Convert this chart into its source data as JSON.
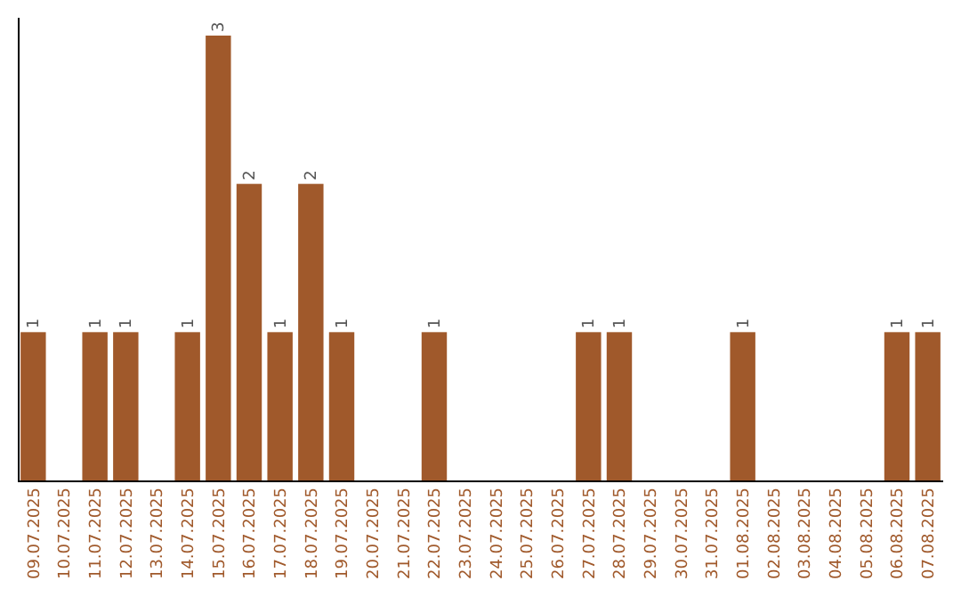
{
  "chart_data": {
    "type": "bar",
    "categories": [
      "09.07.2025",
      "10.07.2025",
      "11.07.2025",
      "12.07.2025",
      "13.07.2025",
      "14.07.2025",
      "15.07.2025",
      "16.07.2025",
      "17.07.2025",
      "18.07.2025",
      "19.07.2025",
      "20.07.2025",
      "21.07.2025",
      "22.07.2025",
      "23.07.2025",
      "24.07.2025",
      "25.07.2025",
      "26.07.2025",
      "27.07.2025",
      "28.07.2025",
      "29.07.2025",
      "30.07.2025",
      "31.07.2025",
      "01.08.2025",
      "02.08.2025",
      "03.08.2025",
      "04.08.2025",
      "05.08.2025",
      "06.08.2025",
      "07.08.2025"
    ],
    "values": [
      1,
      0,
      1,
      1,
      0,
      1,
      3,
      2,
      1,
      2,
      1,
      0,
      0,
      1,
      0,
      0,
      0,
      0,
      1,
      1,
      0,
      0,
      0,
      1,
      0,
      0,
      0,
      0,
      1,
      1
    ],
    "value_labels": [
      "1",
      null,
      "1",
      "1",
      null,
      "1",
      "3",
      "2",
      "1",
      "2",
      "1",
      null,
      null,
      "1",
      null,
      null,
      null,
      null,
      "1",
      "1",
      null,
      null,
      null,
      "1",
      null,
      null,
      null,
      null,
      "1",
      "1"
    ],
    "color": "#a0592b"
  }
}
